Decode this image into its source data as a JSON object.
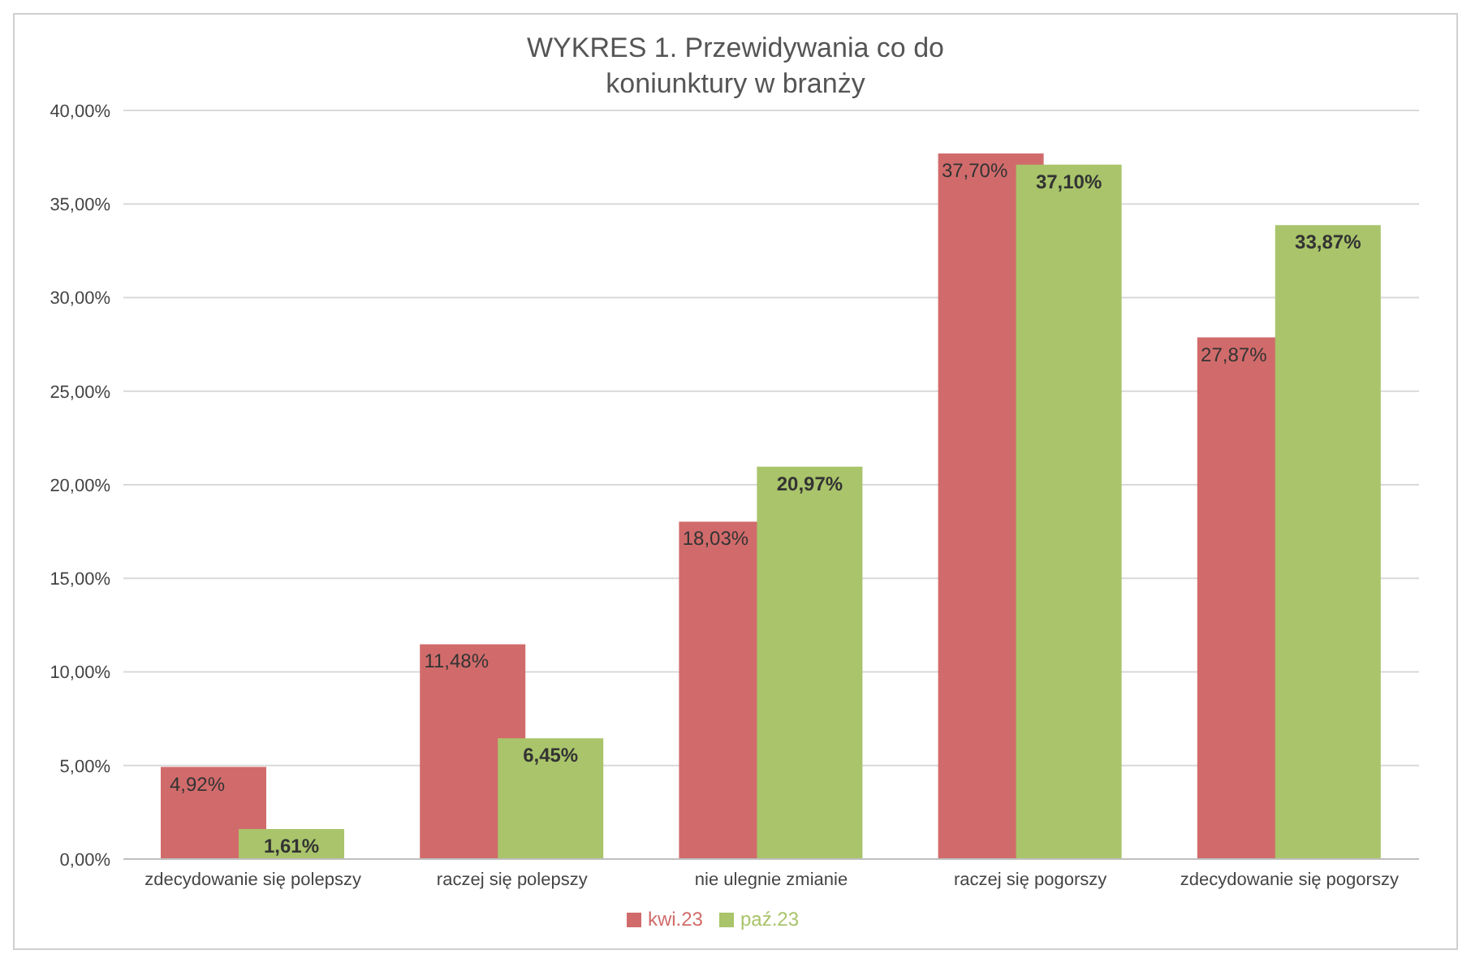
{
  "chart_data": {
    "type": "bar",
    "title": "WYKRES 1. Przewidywania co do koniunktury w branży",
    "categories": [
      "zdecydowanie  się polepszy",
      "raczej  się polepszy",
      "nie ulegnie zmianie",
      "raczej  się pogorszy",
      "zdecydowanie  się pogorszy"
    ],
    "series": [
      {
        "name": "kwi.23",
        "color": "#d16b6b",
        "values": [
          4.92,
          11.48,
          18.03,
          37.7,
          27.87
        ],
        "value_labels": [
          "4,92%",
          "11,48%",
          "18,03%",
          "37,70%",
          "27,87%"
        ]
      },
      {
        "name": "paź.23",
        "color": "#a9c46a",
        "values": [
          1.61,
          6.45,
          20.97,
          37.1,
          33.87
        ],
        "value_labels": [
          "1,61%",
          "6,45%",
          "20,97%",
          "37,10%",
          "33,87%"
        ]
      }
    ],
    "ylim": [
      0,
      40
    ],
    "yticks": [
      {
        "value": 0,
        "label": "0,00%"
      },
      {
        "value": 5,
        "label": "5,00%"
      },
      {
        "value": 10,
        "label": "10,00%"
      },
      {
        "value": 15,
        "label": "15,00%"
      },
      {
        "value": 20,
        "label": "20,00%"
      },
      {
        "value": 25,
        "label": "25,00%"
      },
      {
        "value": 30,
        "label": "30,00%"
      },
      {
        "value": 35,
        "label": "35,00%"
      },
      {
        "value": 40,
        "label": "40,00%"
      }
    ],
    "grid": "y",
    "legend": "bottom"
  }
}
